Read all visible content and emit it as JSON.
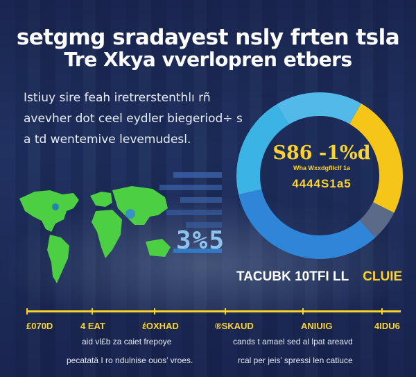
{
  "title": {
    "line1": "setgmg sradayest nsly frten tsla",
    "line2": "Tre Xkya vverlopren etbers"
  },
  "intro": {
    "line1": "Istiuy sire feah   iretrerstenthlı rñ",
    "line2": "avevher dot ceel eydler biegeriod÷ s",
    "line3": "a td wentemive levemudesl."
  },
  "bars_label": "3%5",
  "ring": {
    "value": "S86 -1%d",
    "subtitle": "Wha Wxxdgfllclf 1a",
    "pct_row": "4444S1a5",
    "segments": [
      {
        "name": "yellow",
        "fraction": 0.24,
        "color": "#f5c518"
      },
      {
        "name": "gray",
        "fraction": 0.06,
        "color": "#5a6a88"
      },
      {
        "name": "blue",
        "fraction": 0.33,
        "color": "#2f86d8"
      },
      {
        "name": "light-blue",
        "fraction": 0.2,
        "color": "#3cb3e5"
      },
      {
        "name": "sky",
        "fraction": 0.17,
        "color": "#52b9e8"
      }
    ]
  },
  "tac": {
    "main": "TACUBK 10TFI LL",
    "clue": "CLUIE"
  },
  "timeline": {
    "labels": [
      "£070D",
      "4 EAT",
      "έOXHAD",
      "®SKAUD",
      "ANIUIG",
      "4IDU6"
    ]
  },
  "captions": {
    "left1": "aid vl£b za caiet frepoye",
    "left2": "pecatatä I ro ndulnise ouos’ vroes.",
    "right1": "cands t amael sed al lpat areavd",
    "right2": "rcal per jeis’ spressi len catiuce"
  },
  "colors": {
    "accent": "#ffd42a",
    "background": "#1d2a57",
    "map_green": "#4ccf43"
  }
}
